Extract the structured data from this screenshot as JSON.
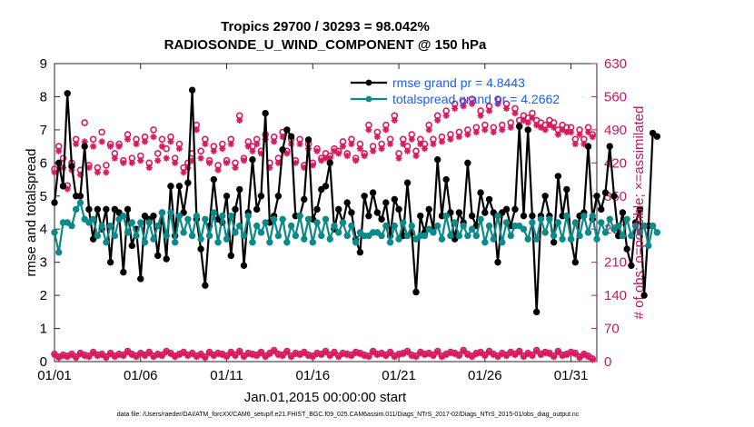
{
  "chart_data": {
    "type": "line",
    "title_line1": "Tropics 29700 / 30293 = 98.042%",
    "title_line2": "RADIOSONDE_U_WIND_COMPONENT @ 150 hPa",
    "xlabel": "Jan.01,2015 00:00:00 start",
    "ylabel_left": "rmse and totalspread",
    "ylabel_right": "# of obs: o=possible; ×=assimilated",
    "xlim": [
      1,
      32.5
    ],
    "ylim_left": [
      0,
      9
    ],
    "ylim_right": [
      0,
      630
    ],
    "x_ticks": [
      1,
      6,
      11,
      16,
      21,
      26,
      31
    ],
    "x_tick_labels": [
      "01/01",
      "01/06",
      "01/11",
      "01/16",
      "01/21",
      "01/26",
      "01/31"
    ],
    "y_left_ticks": [
      "0",
      "1",
      "2",
      "3",
      "4",
      "5",
      "6",
      "7",
      "8",
      "9"
    ],
    "y_right_ticks": [
      "0",
      "70",
      "140",
      "210",
      "280",
      "350",
      "420",
      "490",
      "560",
      "630"
    ],
    "x_start": 1.0,
    "x_step": 0.25,
    "series": [
      {
        "name": "rmse",
        "legend": "rmse grand pr = 4.8443",
        "color": "#000000",
        "values": [
          4.8,
          6.0,
          5.3,
          8.1,
          5.9,
          5.0,
          5.0,
          6.5,
          4.6,
          3.7,
          4.6,
          4.0,
          4.6,
          3.0,
          4.6,
          4.5,
          2.7,
          4.6,
          3.5,
          4.0,
          2.5,
          4.4,
          4.3,
          4.4,
          3.2,
          4.5,
          3.1,
          5.3,
          3.8,
          5.3,
          4.5,
          5.4,
          8.2,
          4.3,
          3.4,
          2.3,
          4.1,
          5.5,
          4.3,
          4.2,
          5.0,
          3.2,
          4.6,
          5.2,
          2.9,
          4.5,
          6.1,
          4.6,
          5.0,
          7.5,
          4.2,
          4.4,
          5.0,
          6.4,
          7.0,
          6.8,
          4.4,
          4.4,
          4.9,
          6.7,
          4.3,
          4.6,
          5.2,
          5.3,
          6.0,
          4.0,
          4.6,
          4.2,
          4.8,
          4.5,
          3.7,
          3.3,
          5.0,
          4.4,
          5.1,
          4.5,
          4.3,
          4.8,
          3.8,
          4.9,
          4.6,
          3.8,
          5.4,
          3.9,
          2.1,
          4.4,
          3.9,
          4.6,
          4.0,
          6.1,
          4.4,
          5.5,
          4.5,
          3.7,
          4.5,
          4.2,
          6.0,
          4.4,
          4.1,
          5.1,
          4.5,
          4.9,
          4.5,
          3.0,
          4.5,
          4.6,
          4.1,
          4.6,
          7.1,
          4.4,
          7.0,
          4.4,
          1.5,
          4.4,
          5.0,
          4.4,
          3.6,
          5.6,
          4.4,
          5.2,
          3.7,
          3.0,
          4.4,
          4.5,
          6.5,
          4.3,
          5.0,
          4.6,
          5.1,
          6.5,
          5.0,
          3.8,
          4.5,
          3.4,
          2.9,
          4.2,
          4.6,
          2.0,
          4.1,
          6.9,
          6.8
        ],
        "markers": [
          "x",
          "x",
          "x",
          "x",
          "x",
          "x",
          "x",
          "x",
          "x",
          "x",
          "x",
          "x",
          "x",
          "x",
          "x",
          "x",
          "x",
          "x",
          "x",
          "x",
          "x",
          "x",
          "x",
          "x",
          "x",
          "x",
          "x",
          "x",
          "x",
          "x",
          "x",
          "x",
          "x",
          "x",
          "x",
          "x",
          "x",
          "x",
          "x",
          "x",
          "x",
          "x",
          "x",
          "x",
          "x",
          "x",
          "x",
          "x",
          "x",
          "x",
          "x",
          "x",
          "x",
          "x",
          "x",
          "x",
          "x",
          "x",
          "x",
          "x",
          "x",
          "x",
          "x",
          "x",
          "x",
          "x",
          "x",
          "x",
          "x",
          "x",
          "x",
          "x",
          "x",
          "x",
          "x",
          "x",
          "x",
          "x",
          "x",
          "x",
          "x",
          "x",
          "x",
          "x",
          "x",
          "x",
          "x",
          "x",
          "x",
          "x",
          "x",
          "x",
          "x",
          "x",
          "x",
          "x",
          "x",
          "x",
          "x",
          "x",
          "x",
          "x",
          "x",
          "x",
          "x",
          "x",
          "x",
          "x",
          "x",
          "x",
          "x",
          "x",
          "x",
          "x",
          "x",
          "x",
          "x",
          "x",
          "x",
          "x",
          "x",
          "x",
          "x",
          "x",
          "x",
          "x",
          "x",
          "x",
          "x",
          "x",
          "x",
          "x",
          "x",
          "x",
          "x",
          "x",
          "x",
          "x",
          "x",
          "x",
          "x"
        ]
      },
      {
        "name": "totalspread",
        "legend": "totalspread grand pr = 4.2662",
        "color": "#0a8a8a",
        "values": [
          3.9,
          3.3,
          4.2,
          4.2,
          4.1,
          4.6,
          4.8,
          4.3,
          4.2,
          4.3,
          3.8,
          4.1,
          3.6,
          4.1,
          3.8,
          4.3,
          4.4,
          3.9,
          4.2,
          3.8,
          4.2,
          3.6,
          4.2,
          3.7,
          4.1,
          4.5,
          3.8,
          4.5,
          3.6,
          4.4,
          3.9,
          4.3,
          3.8,
          4.4,
          3.7,
          4.3,
          3.8,
          4.5,
          3.6,
          4.4,
          3.7,
          4.4,
          3.9,
          4.1,
          3.8,
          4.4,
          3.6,
          4.1,
          3.9,
          4.2,
          3.6,
          4.3,
          3.8,
          4.3,
          3.6,
          4.1,
          3.8,
          4.4,
          3.7,
          4.3,
          3.6,
          4.2,
          3.8,
          4.3,
          3.7,
          4.1,
          3.9,
          4.2,
          3.8,
          4.1,
          3.6,
          3.9,
          3.8,
          3.8,
          3.9,
          3.9,
          3.8,
          4.1,
          3.6,
          4.1,
          3.7,
          4.2,
          3.8,
          4.1,
          3.7,
          3.8,
          3.8,
          4.0,
          3.9,
          4.1,
          3.7,
          4.4,
          3.8,
          4.2,
          3.8,
          4.1,
          3.8,
          4.0,
          3.8,
          4.3,
          3.6,
          4.1,
          3.7,
          4.4,
          3.6,
          4.2,
          3.8,
          4.1,
          4.1,
          4.0,
          3.7,
          4.2,
          3.7,
          4.3,
          3.9,
          4.3,
          3.8,
          4.2,
          3.7,
          4.4,
          3.7,
          4.2,
          3.8,
          4.4,
          3.9,
          4.4,
          3.7,
          4.2,
          3.9,
          4.3,
          4.0,
          4.1,
          3.8,
          4.3,
          3.8,
          4.1,
          3.9,
          4.1,
          3.5,
          4.1,
          3.9
        ]
      }
    ],
    "possible_obs": [
      407,
      455,
      430,
      372,
      420,
      470,
      405,
      505,
      415,
      470,
      410,
      485,
      415,
      460,
      440,
      460,
      425,
      480,
      430,
      470,
      435,
      475,
      420,
      490,
      440,
      470,
      450,
      475,
      430,
      460,
      410,
      420,
      440,
      500,
      445,
      470,
      425,
      455,
      415,
      460,
      425,
      470,
      420,
      520,
      430,
      465,
      455,
      470,
      445,
      480,
      420,
      475,
      430,
      485,
      445,
      470,
      425,
      470,
      415,
      460,
      420,
      450,
      430,
      440,
      435,
      450,
      445,
      465,
      440,
      470,
      430,
      460,
      440,
      500,
      455,
      485,
      460,
      500,
      470,
      520,
      440,
      470,
      455,
      480,
      445,
      470,
      460,
      500,
      470,
      520,
      475,
      530,
      480,
      545,
      485,
      550,
      490,
      555,
      495,
      530,
      500,
      540,
      495,
      555,
      500,
      545,
      505,
      535,
      510,
      520,
      515,
      525,
      510,
      505,
      500,
      510,
      505,
      490,
      500,
      495,
      495,
      470,
      490,
      470,
      495,
      480
    ],
    "assimilated_obs": [
      400,
      445,
      410,
      365,
      405,
      460,
      395,
      465,
      410,
      455,
      400,
      465,
      400,
      455,
      430,
      455,
      420,
      470,
      420,
      460,
      425,
      465,
      410,
      475,
      425,
      455,
      430,
      465,
      420,
      450,
      400,
      410,
      425,
      490,
      430,
      460,
      420,
      445,
      405,
      450,
      420,
      460,
      410,
      510,
      425,
      455,
      445,
      460,
      440,
      470,
      410,
      465,
      420,
      475,
      440,
      460,
      420,
      460,
      410,
      450,
      415,
      445,
      425,
      430,
      430,
      445,
      440,
      455,
      435,
      460,
      425,
      450,
      435,
      490,
      445,
      475,
      450,
      490,
      460,
      510,
      430,
      460,
      445,
      470,
      435,
      460,
      450,
      490,
      460,
      510,
      465,
      520,
      470,
      535,
      475,
      540,
      480,
      545,
      485,
      520,
      490,
      530,
      485,
      545,
      490,
      535,
      495,
      525,
      500,
      510,
      505,
      515,
      500,
      495,
      490,
      500,
      495,
      480,
      490,
      485,
      485,
      460,
      480,
      460,
      485,
      475
    ],
    "possible_low": [
      16,
      10,
      14,
      12,
      16,
      10,
      18,
      14,
      12,
      20,
      14,
      16,
      10,
      18,
      12,
      16,
      14,
      22,
      16,
      12,
      18,
      14,
      20,
      12,
      16,
      14,
      22,
      18,
      12,
      16,
      20,
      14,
      18,
      12,
      16,
      10,
      20,
      14,
      18,
      16,
      12,
      20,
      14,
      22,
      12,
      18,
      16,
      14,
      20,
      12,
      18,
      24,
      16,
      14,
      22,
      12,
      18,
      16,
      20,
      14,
      12,
      18,
      16,
      22,
      14,
      20,
      12,
      18,
      16,
      14,
      20,
      18,
      14,
      12,
      22,
      16,
      18,
      14,
      20,
      12,
      16,
      18,
      22,
      14,
      12,
      20,
      16,
      18,
      14,
      22,
      12,
      16,
      20,
      18,
      14,
      24,
      16,
      12,
      18,
      20,
      14,
      22,
      16,
      12,
      18,
      14,
      20,
      16,
      22,
      12,
      18,
      14,
      24,
      16,
      20,
      18,
      12,
      22,
      14,
      16,
      20,
      18,
      10,
      16,
      12,
      6
    ],
    "assimilated_low": [
      14,
      8,
      12,
      10,
      14,
      8,
      16,
      12,
      10,
      18,
      12,
      14,
      8,
      16,
      10,
      14,
      12,
      20,
      14,
      10,
      16,
      12,
      18,
      10,
      14,
      12,
      20,
      16,
      10,
      14,
      18,
      12,
      16,
      10,
      14,
      8,
      18,
      12,
      16,
      14,
      10,
      18,
      12,
      20,
      10,
      16,
      14,
      12,
      18,
      10,
      16,
      22,
      14,
      12,
      20,
      10,
      16,
      14,
      18,
      12,
      10,
      16,
      14,
      20,
      12,
      18,
      10,
      16,
      14,
      12,
      18,
      16,
      12,
      10,
      20,
      14,
      16,
      12,
      18,
      10,
      14,
      16,
      20,
      12,
      10,
      18,
      14,
      16,
      12,
      20,
      10,
      14,
      18,
      16,
      12,
      22,
      14,
      10,
      16,
      18,
      12,
      20,
      14,
      10,
      16,
      12,
      18,
      14,
      20,
      10,
      16,
      12,
      22,
      14,
      18,
      16,
      10,
      20,
      12,
      14,
      18,
      16,
      8,
      14,
      10,
      4
    ],
    "footer": "data file: /Users/raeder/DAI/ATM_forcXX/CAM6_setup/f.e21.FHIST_BGC.f09_025.CAM6assim.011/Diags_NTrS_2017-02/Diags_NTrS_2015-01/obs_diag_output.nc"
  }
}
